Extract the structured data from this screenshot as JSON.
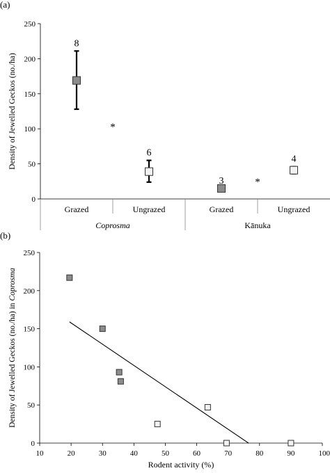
{
  "chart_data": [
    {
      "type": "errorbar",
      "panel_label": "(a)",
      "ylabel": "Density of Jewelled Geckos (no./ha)",
      "ylim": [
        0,
        250
      ],
      "yticks": [
        0,
        50,
        100,
        150,
        200,
        250
      ],
      "groups": [
        {
          "name": "Coprosma",
          "italic": true,
          "categories": [
            "Grazed",
            "Ungrazed"
          ]
        },
        {
          "name": "Kānuka",
          "italic": false,
          "categories": [
            "Grazed",
            "Ungrazed"
          ]
        }
      ],
      "points": [
        {
          "group": "Coprosma",
          "category": "Grazed",
          "mean": 169,
          "lower": 128,
          "upper": 211,
          "n_label": "8",
          "marker": "grey-square"
        },
        {
          "group": "Coprosma",
          "category": "Ungrazed",
          "mean": 39,
          "lower": 24,
          "upper": 55,
          "n_label": "6",
          "marker": "white-square"
        },
        {
          "group": "Kānuka",
          "category": "Grazed",
          "mean": 15,
          "lower": 15,
          "upper": 15,
          "n_label": "3",
          "marker": "grey-square"
        },
        {
          "group": "Kānuka",
          "category": "Ungrazed",
          "mean": 41,
          "lower": 36,
          "upper": 46,
          "n_label": "4",
          "marker": "white-square"
        }
      ],
      "significance": [
        {
          "group": "Coprosma",
          "label": "*",
          "y": 105
        },
        {
          "group": "Kānuka",
          "label": "*",
          "y": 27
        }
      ],
      "colors": {
        "grazed": "#8c8c8c",
        "ungrazed": "#f2f2f2"
      }
    },
    {
      "type": "scatter",
      "panel_label": "(b)",
      "xlabel": "Rodent activity (%)",
      "ylabel_prefix": "Density of Jewelled Geckos (no./ha) in ",
      "ylabel_italic": "Coprosma",
      "xlim": [
        10,
        100
      ],
      "ylim": [
        0,
        250
      ],
      "xticks": [
        10,
        20,
        30,
        40,
        50,
        60,
        70,
        80,
        90,
        100
      ],
      "yticks": [
        0,
        50,
        100,
        150,
        200,
        250
      ],
      "series": [
        {
          "marker": "grey-square",
          "x": [
            19.5,
            30,
            35.3,
            35.8
          ],
          "y": [
            217,
            150,
            93,
            81
          ]
        },
        {
          "marker": "white-square",
          "x": [
            47.5,
            63.5,
            69.5,
            90
          ],
          "y": [
            25,
            47,
            0,
            0
          ]
        }
      ],
      "trendline": {
        "x": [
          19.5,
          76.5
        ],
        "y": [
          159,
          0
        ]
      },
      "colors": {
        "grazed": "#8c8c8c",
        "ungrazed": "#f2f2f2"
      }
    }
  ]
}
